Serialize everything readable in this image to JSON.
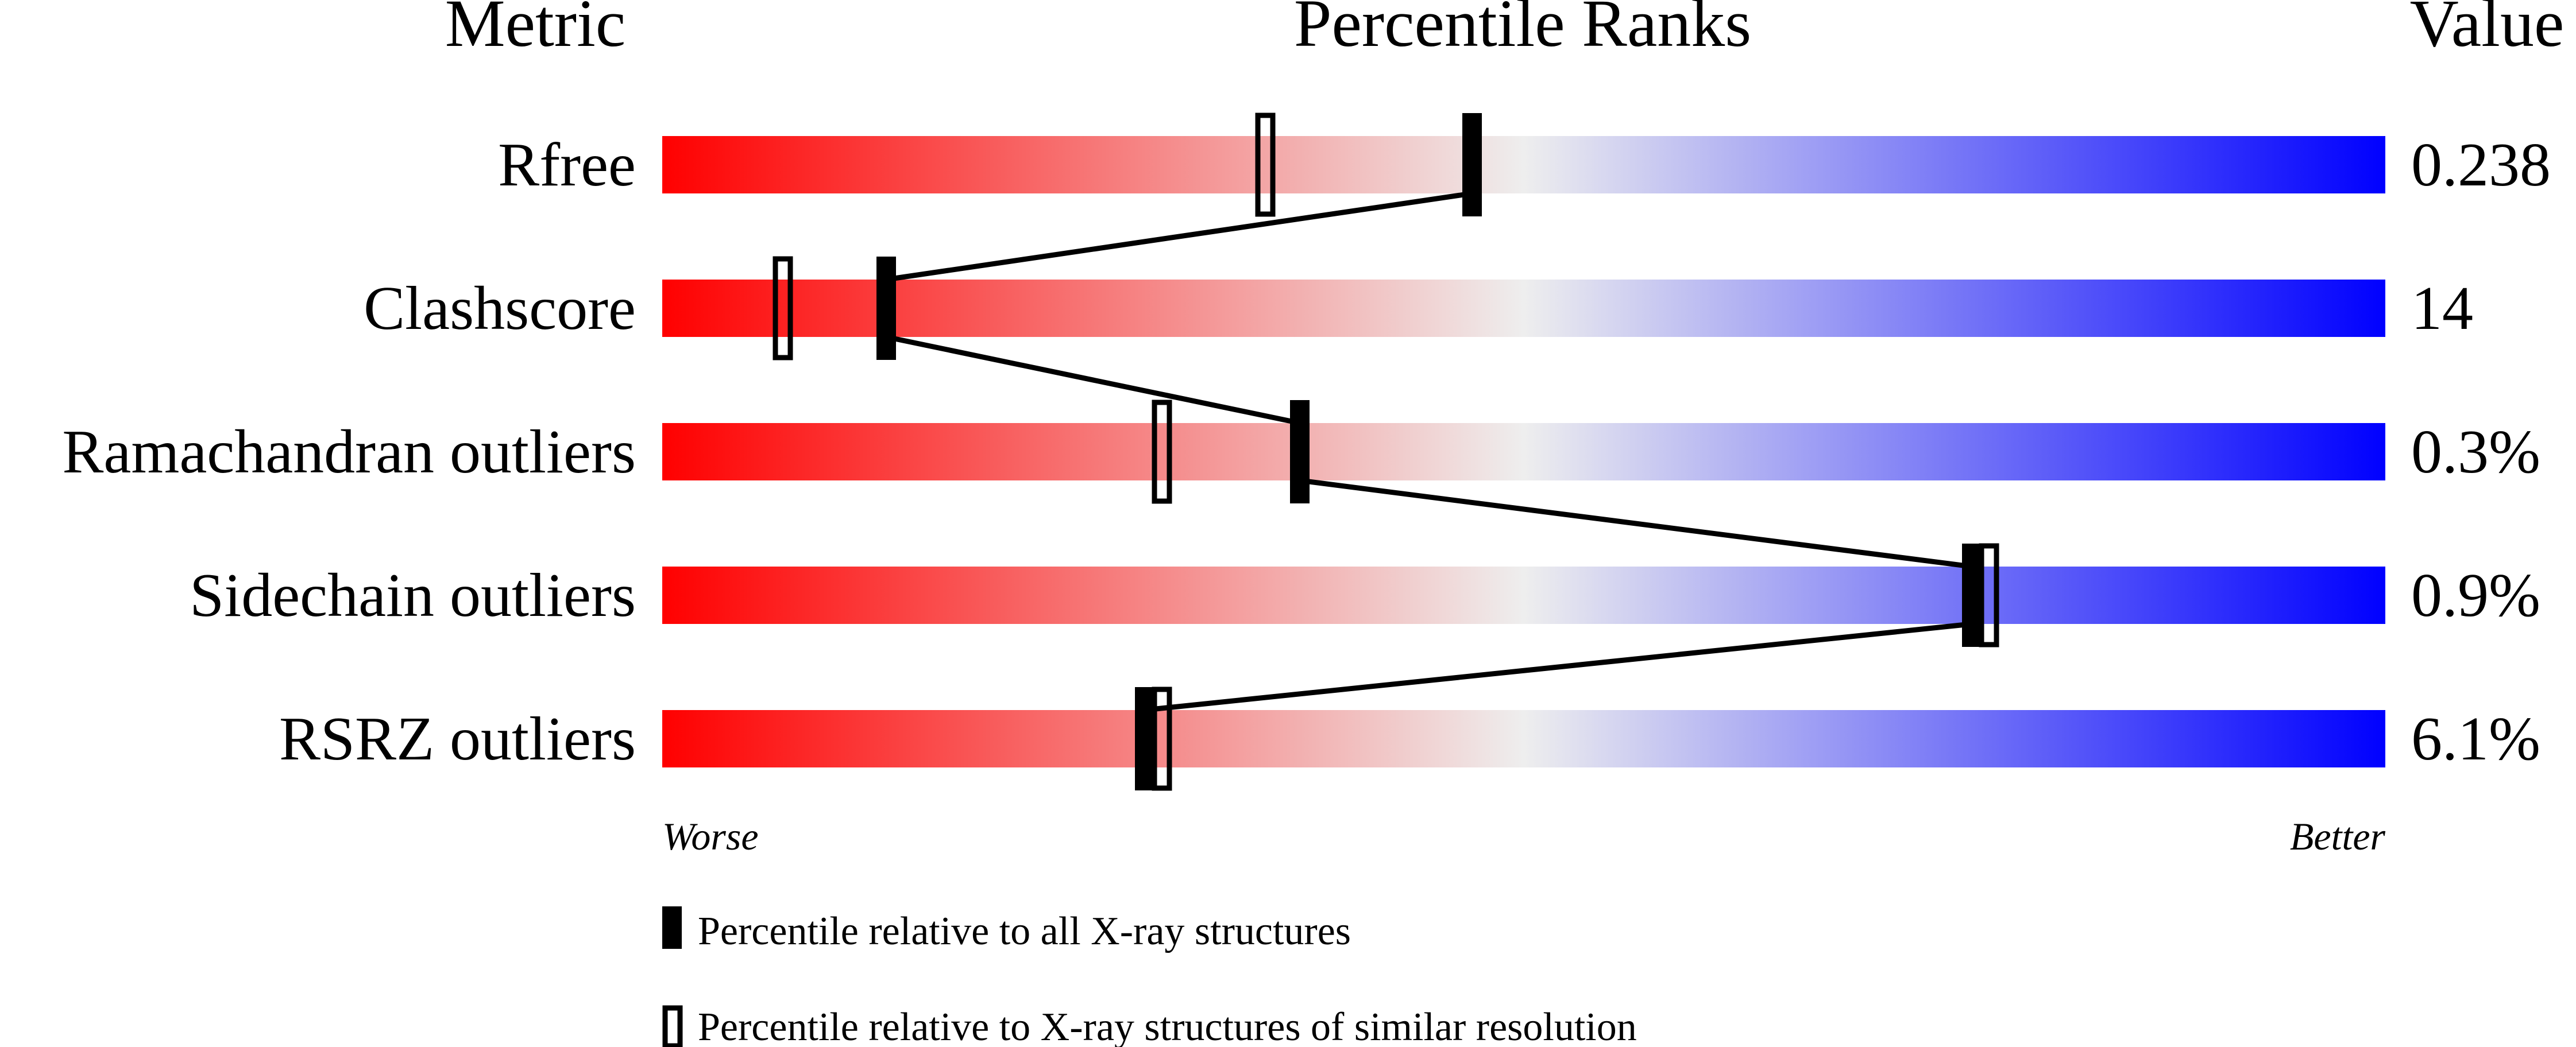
{
  "chart_data": {
    "type": "percentile-ranks",
    "headers": {
      "metric": "Metric",
      "ranks": "Percentile Ranks",
      "value": "Value"
    },
    "xlim": [
      0,
      100
    ],
    "axis_labels": {
      "left": "Worse",
      "right": "Better"
    },
    "colors": {
      "worse": "#ff0000",
      "middle": "#eeeeee",
      "better": "#0000ff",
      "marker": "#000000"
    },
    "metrics": [
      {
        "name": "Rfree",
        "value": "0.238",
        "percentile_all": 47,
        "percentile_similar": 35
      },
      {
        "name": "Clashscore",
        "value": "14",
        "percentile_all": 13,
        "percentile_similar": 7
      },
      {
        "name": "Ramachandran outliers",
        "value": "0.3%",
        "percentile_all": 37,
        "percentile_similar": 29
      },
      {
        "name": "Sidechain outliers",
        "value": "0.9%",
        "percentile_all": 76,
        "percentile_similar": 77
      },
      {
        "name": "RSRZ outliers",
        "value": "6.1%",
        "percentile_all": 28,
        "percentile_similar": 29
      }
    ],
    "legend": [
      {
        "marker": "filled",
        "label": "Percentile relative to all X-ray structures"
      },
      {
        "marker": "open",
        "label": "Percentile relative to X-ray structures of similar resolution"
      }
    ]
  }
}
